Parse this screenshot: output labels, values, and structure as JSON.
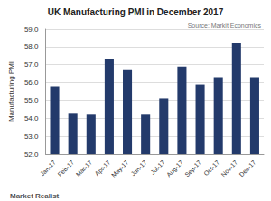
{
  "chart_data": {
    "type": "bar",
    "title": "UK Manufacturing PMI in December 2017",
    "source": "Source: Markit Economics",
    "credit": "Market Realist",
    "ylabel": "Manufacturing PMI",
    "categories": [
      "Jan-17",
      "Feb-17",
      "Mar-17",
      "Apr-17",
      "May-17",
      "Jun-17",
      "Jul-17",
      "Aug-17",
      "Sep-17",
      "Oct-17",
      "Nov-17",
      "Dec-17"
    ],
    "values": [
      55.8,
      54.3,
      54.2,
      57.3,
      56.7,
      54.2,
      55.1,
      56.9,
      55.9,
      56.3,
      58.2,
      56.3
    ],
    "color": "#233a6b",
    "ylim": [
      52,
      59
    ],
    "yticks": [
      {
        "value": 52,
        "label": "52.0"
      },
      {
        "value": 53,
        "label": "53.0"
      },
      {
        "value": 54,
        "label": "54.0"
      },
      {
        "value": 55,
        "label": "55.0"
      },
      {
        "value": 56,
        "label": "56.0"
      },
      {
        "value": 57,
        "label": "57.0"
      },
      {
        "value": 58,
        "label": "58.0"
      },
      {
        "value": 59,
        "label": "59.0"
      }
    ],
    "grid": true
  }
}
